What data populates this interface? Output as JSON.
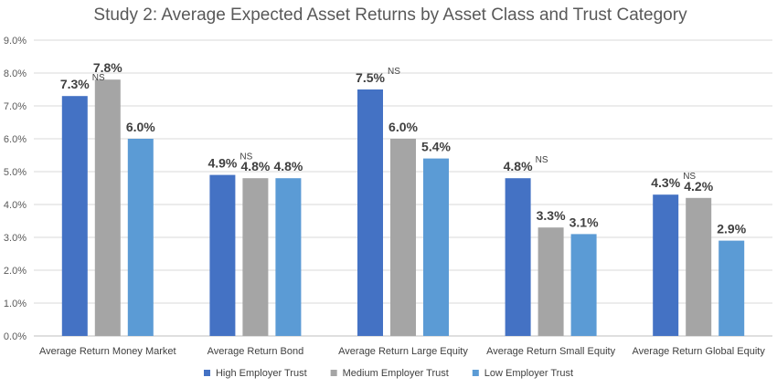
{
  "chart_data": {
    "type": "bar",
    "title": "Study 2: Average Expected Asset Returns by Asset Class and Trust Category",
    "categories": [
      "Average Return Money Market",
      "Average Return Bond",
      "Average Return Large Equity",
      "Average Return Small Equity",
      "Average Return Global Equity"
    ],
    "series": [
      {
        "name": "High Employer Trust",
        "color": "#4472c4",
        "values": [
          7.3,
          4.9,
          7.5,
          4.8,
          4.3
        ],
        "labels": [
          "7.3%",
          "4.9%",
          "7.5%",
          "4.8%",
          "4.3%"
        ]
      },
      {
        "name": "Medium Employer Trust",
        "color": "#a5a5a5",
        "values": [
          7.8,
          4.8,
          6.0,
          3.3,
          4.2
        ],
        "labels": [
          "7.8%",
          "4.8%",
          "6.0%",
          "3.3%",
          "4.2%"
        ]
      },
      {
        "name": "Low Employer Trust",
        "color": "#5b9bd5",
        "values": [
          6.0,
          4.8,
          5.4,
          3.1,
          2.9
        ],
        "labels": [
          "6.0%",
          "4.8%",
          "5.4%",
          "3.1%",
          "2.9%"
        ]
      }
    ],
    "annotations": [
      {
        "text": "NS",
        "category_index": 0,
        "series_index": 0,
        "position": "upper-right of label"
      },
      {
        "text": "NS",
        "category_index": 1,
        "series_index": 0,
        "position": "upper-right of label"
      },
      {
        "text": "NS",
        "category_index": 2,
        "series_index": 0,
        "position": "upper-right of label"
      },
      {
        "text": "NS",
        "category_index": 3,
        "series_index": 0,
        "position": "upper-right of label"
      },
      {
        "text": "NS",
        "category_index": 4,
        "series_index": 0,
        "position": "upper-right of label"
      }
    ],
    "ylim": [
      0,
      9
    ],
    "yticks": [
      "0.0%",
      "1.0%",
      "2.0%",
      "3.0%",
      "4.0%",
      "5.0%",
      "6.0%",
      "7.0%",
      "8.0%",
      "9.0%"
    ],
    "grid": true,
    "legend_position": "bottom-center"
  }
}
